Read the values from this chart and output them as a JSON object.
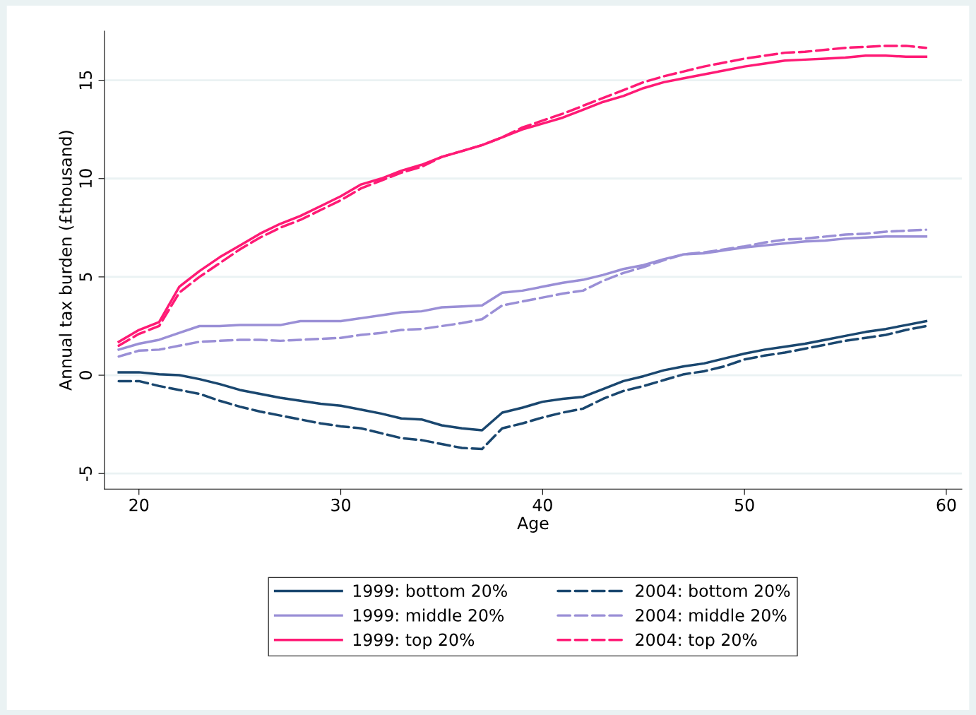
{
  "chart_data": {
    "type": "line",
    "xlabel": "Age",
    "ylabel": "Annual tax burden (£thousand)",
    "x": [
      19,
      20,
      21,
      22,
      23,
      24,
      25,
      26,
      27,
      28,
      29,
      30,
      31,
      32,
      33,
      34,
      35,
      36,
      37,
      38,
      39,
      40,
      41,
      42,
      43,
      44,
      45,
      46,
      47,
      48,
      49,
      50,
      51,
      52,
      53,
      54,
      55,
      56,
      57,
      58,
      59
    ],
    "series": [
      {
        "name": "1999: bottom 20%",
        "color": "#1a476f",
        "line_style": "solid",
        "values": [
          0.15,
          0.15,
          0.05,
          0.0,
          -0.2,
          -0.45,
          -0.75,
          -0.95,
          -1.15,
          -1.3,
          -1.45,
          -1.55,
          -1.75,
          -1.95,
          -2.2,
          -2.25,
          -2.55,
          -2.7,
          -2.8,
          -1.9,
          -1.65,
          -1.35,
          -1.2,
          -1.1,
          -0.7,
          -0.3,
          -0.05,
          0.25,
          0.45,
          0.6,
          0.85,
          1.1,
          1.3,
          1.45,
          1.6,
          1.8,
          2.0,
          2.2,
          2.35,
          2.55,
          2.75
        ]
      },
      {
        "name": "1999: middle 20%",
        "color": "#9a8fd6",
        "line_style": "solid",
        "values": [
          1.3,
          1.6,
          1.8,
          2.15,
          2.5,
          2.5,
          2.55,
          2.55,
          2.55,
          2.75,
          2.75,
          2.75,
          2.9,
          3.05,
          3.2,
          3.25,
          3.45,
          3.5,
          3.55,
          4.2,
          4.3,
          4.5,
          4.7,
          4.85,
          5.1,
          5.4,
          5.6,
          5.9,
          6.15,
          6.2,
          6.35,
          6.5,
          6.6,
          6.7,
          6.8,
          6.85,
          6.95,
          7.0,
          7.05,
          7.05,
          7.05
        ]
      },
      {
        "name": "1999: top 20%",
        "color": "#ff1a75",
        "line_style": "solid",
        "values": [
          1.7,
          2.3,
          2.7,
          4.5,
          5.3,
          6.0,
          6.6,
          7.2,
          7.7,
          8.1,
          8.6,
          9.1,
          9.7,
          10.0,
          10.4,
          10.7,
          11.1,
          11.4,
          11.7,
          12.1,
          12.5,
          12.8,
          13.1,
          13.5,
          13.9,
          14.2,
          14.6,
          14.9,
          15.1,
          15.3,
          15.5,
          15.7,
          15.85,
          16.0,
          16.05,
          16.1,
          16.15,
          16.25,
          16.25,
          16.2,
          16.2
        ]
      },
      {
        "name": "2004: bottom 20%",
        "color": "#1a476f",
        "line_style": "dashed",
        "values": [
          -0.3,
          -0.3,
          -0.55,
          -0.75,
          -0.95,
          -1.3,
          -1.6,
          -1.85,
          -2.05,
          -2.25,
          -2.45,
          -2.6,
          -2.7,
          -2.95,
          -3.2,
          -3.3,
          -3.5,
          -3.7,
          -3.75,
          -2.7,
          -2.45,
          -2.15,
          -1.9,
          -1.7,
          -1.2,
          -0.8,
          -0.55,
          -0.25,
          0.05,
          0.2,
          0.45,
          0.8,
          1.0,
          1.15,
          1.35,
          1.55,
          1.75,
          1.9,
          2.05,
          2.3,
          2.5
        ]
      },
      {
        "name": "2004: middle 20%",
        "color": "#9a8fd6",
        "line_style": "dashed",
        "values": [
          0.95,
          1.25,
          1.3,
          1.5,
          1.7,
          1.75,
          1.8,
          1.8,
          1.75,
          1.8,
          1.85,
          1.9,
          2.05,
          2.15,
          2.3,
          2.35,
          2.5,
          2.65,
          2.85,
          3.55,
          3.75,
          3.95,
          4.15,
          4.3,
          4.8,
          5.2,
          5.5,
          5.85,
          6.15,
          6.25,
          6.4,
          6.55,
          6.75,
          6.9,
          6.95,
          7.05,
          7.15,
          7.2,
          7.3,
          7.35,
          7.4
        ]
      },
      {
        "name": "2004: top 20%",
        "color": "#ff1a75",
        "line_style": "dashed",
        "values": [
          1.5,
          2.1,
          2.5,
          4.2,
          5.0,
          5.7,
          6.4,
          7.0,
          7.5,
          7.9,
          8.4,
          8.9,
          9.5,
          9.9,
          10.3,
          10.6,
          11.1,
          11.4,
          11.7,
          12.1,
          12.6,
          12.95,
          13.3,
          13.7,
          14.1,
          14.5,
          14.9,
          15.2,
          15.45,
          15.7,
          15.9,
          16.1,
          16.25,
          16.4,
          16.45,
          16.55,
          16.65,
          16.7,
          16.75,
          16.75,
          16.65
        ]
      }
    ],
    "xlim": [
      18.29,
      60.77
    ],
    "xticks": [
      20,
      30,
      40,
      50,
      60
    ],
    "ylim": [
      -5.79,
      17.5
    ],
    "yticks": [
      -5,
      0,
      5,
      10,
      15
    ],
    "grid": "y",
    "legend": "bottom"
  }
}
